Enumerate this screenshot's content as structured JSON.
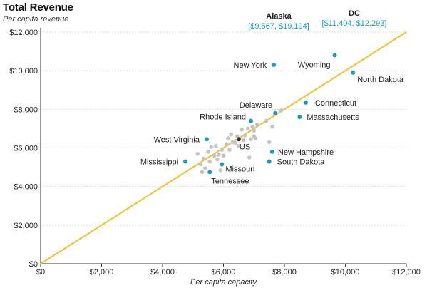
{
  "chart_data": {
    "type": "scatter",
    "title": "Total Revenue",
    "subtitle": "Per capita revenue",
    "xlabel": "Per capita capacity",
    "ylabel": "",
    "xlim": [
      0,
      12000
    ],
    "ylim": [
      0,
      12000
    ],
    "x_ticks": [
      "$0",
      "$2,000",
      "$4,000",
      "$6,000",
      "$8,000",
      "$10,000",
      "$12,000"
    ],
    "y_ticks": [
      "$0",
      "$2,000",
      "$4,000",
      "$6,000",
      "$8,000",
      "$10,000",
      "$12,000"
    ],
    "reference_line": {
      "from": [
        0,
        0
      ],
      "to": [
        12000,
        12000
      ],
      "color": "#f2c12e"
    },
    "colors": {
      "highlight": "#1a9bc4",
      "other": "#c4c4c4",
      "us": "#333333",
      "label": "#222222"
    },
    "labeled_points": [
      {
        "name": "New York",
        "x": 7650,
        "y": 10300
      },
      {
        "name": "Wyoming",
        "x": 9650,
        "y": 10800
      },
      {
        "name": "North Dakota",
        "x": 10250,
        "y": 9900
      },
      {
        "name": "Connecticut",
        "x": 8700,
        "y": 8350
      },
      {
        "name": "Delaware",
        "x": 7700,
        "y": 7800
      },
      {
        "name": "Massachusetts",
        "x": 8500,
        "y": 7600
      },
      {
        "name": "Rhode Island",
        "x": 6900,
        "y": 7400
      },
      {
        "name": "West Virginia",
        "x": 5450,
        "y": 6450
      },
      {
        "name": "New Hampshire",
        "x": 7600,
        "y": 5800
      },
      {
        "name": "Mississippi",
        "x": 4750,
        "y": 5300
      },
      {
        "name": "South Dakota",
        "x": 7500,
        "y": 5300
      },
      {
        "name": "Missouri",
        "x": 5950,
        "y": 5150
      },
      {
        "name": "Tennessee",
        "x": 5550,
        "y": 4750
      }
    ],
    "us_point": {
      "name": "US",
      "x": 6500,
      "y": 6450
    },
    "other_points": [
      [
        5150,
        5700
      ],
      [
        5250,
        5150
      ],
      [
        5300,
        4750
      ],
      [
        5350,
        5450
      ],
      [
        5400,
        4950
      ],
      [
        5500,
        5800
      ],
      [
        5550,
        5300
      ],
      [
        5600,
        6050
      ],
      [
        5700,
        5600
      ],
      [
        5750,
        6100
      ],
      [
        5800,
        5400
      ],
      [
        5850,
        5650
      ],
      [
        5900,
        4850
      ],
      [
        5950,
        5900
      ],
      [
        6000,
        5600
      ],
      [
        6100,
        6200
      ],
      [
        6150,
        6500
      ],
      [
        6200,
        5900
      ],
      [
        6250,
        6700
      ],
      [
        6300,
        6300
      ],
      [
        6400,
        6250
      ],
      [
        6450,
        6600
      ],
      [
        6500,
        6100
      ],
      [
        6600,
        6950
      ],
      [
        6650,
        6400
      ],
      [
        6700,
        6650
      ],
      [
        6800,
        7000
      ],
      [
        6850,
        5500
      ],
      [
        6900,
        6450
      ],
      [
        6950,
        7100
      ],
      [
        7000,
        6900
      ],
      [
        7000,
        6600
      ],
      [
        7100,
        7200
      ],
      [
        7050,
        6500
      ],
      [
        7400,
        7400
      ],
      [
        7500,
        6300
      ],
      [
        7600,
        7100
      ],
      [
        7700,
        7800
      ],
      [
        7900,
        7950
      ]
    ],
    "outliers": [
      {
        "name": "Alaska",
        "value_label": "[$9,567,  $19,194]"
      },
      {
        "name": "DC",
        "value_label": "[$11,404,  $12,293]"
      }
    ]
  }
}
